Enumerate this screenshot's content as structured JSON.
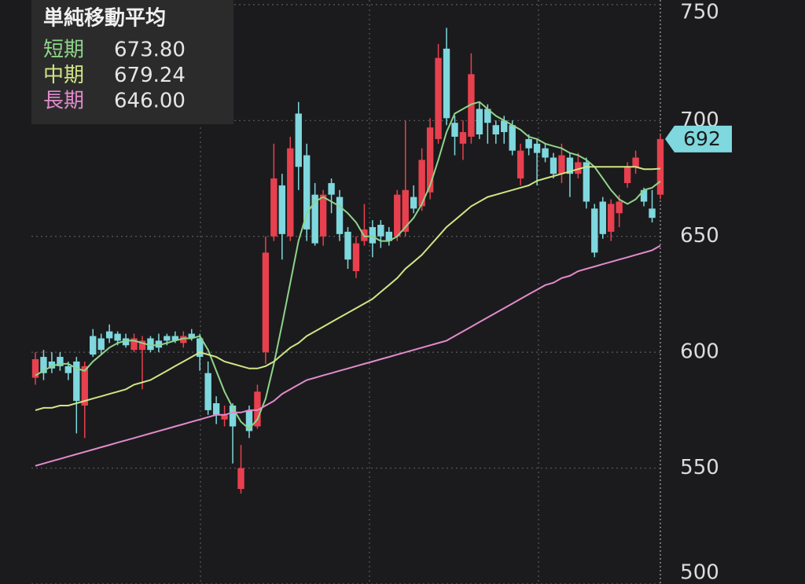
{
  "chart_data": {
    "type": "candlestick",
    "legend_title": "単純移動平均",
    "up_color": "#e8404e",
    "down_color": "#7ed8de",
    "open": [
      589,
      598,
      596,
      598,
      594,
      596,
      577,
      607,
      606,
      609,
      608,
      606,
      601,
      601,
      606,
      605,
      607,
      607,
      604,
      608,
      606,
      591,
      578,
      571,
      577,
      541,
      575,
      568,
      600,
      650,
      672,
      650,
      703,
      685,
      668,
      650,
      673,
      667,
      652,
      635,
      648,
      654,
      655,
      652,
      650,
      652,
      667,
      663,
      669,
      692,
      731,
      699,
      690,
      693,
      705,
      705,
      698,
      700,
      698,
      675,
      692,
      690,
      688,
      684,
      677,
      684,
      677,
      682,
      662,
      665,
      652,
      660,
      673,
      680,
      670,
      662,
      668
    ],
    "high": [
      600,
      601,
      600,
      600,
      596,
      598,
      596,
      610,
      608,
      612,
      609,
      608,
      608,
      607,
      607,
      608,
      608,
      609,
      609,
      610,
      608,
      596,
      581,
      577,
      578,
      560,
      577,
      586,
      650,
      690,
      677,
      693,
      708,
      690,
      673,
      670,
      675,
      670,
      654,
      650,
      664,
      657,
      657,
      654,
      670,
      700,
      672,
      688,
      701,
      733,
      740,
      702,
      700,
      729,
      708,
      707,
      700,
      702,
      700,
      690,
      694,
      692,
      690,
      686,
      690,
      686,
      686,
      684,
      664,
      667,
      666,
      668,
      682,
      687,
      671,
      670,
      694
    ],
    "low": [
      586,
      588,
      591,
      592,
      588,
      565,
      563,
      598,
      599,
      604,
      603,
      602,
      600,
      584,
      600,
      600,
      603,
      604,
      602,
      605,
      592,
      573,
      569,
      568,
      552,
      539,
      563,
      567,
      595,
      648,
      640,
      648,
      670,
      648,
      646,
      646,
      660,
      648,
      636,
      632,
      646,
      641,
      645,
      646,
      648,
      650,
      660,
      661,
      666,
      690,
      698,
      685,
      683,
      690,
      692,
      690,
      690,
      690,
      685,
      672,
      685,
      672,
      682,
      675,
      673,
      667,
      675,
      662,
      641,
      649,
      648,
      654,
      671,
      677,
      663,
      656,
      666
    ],
    "close": [
      597,
      591,
      593,
      594,
      591,
      579,
      594,
      599,
      601,
      606,
      605,
      603,
      606,
      605,
      601,
      602,
      605,
      605,
      607,
      606,
      598,
      575,
      573,
      573,
      568,
      550,
      566,
      583,
      643,
      675,
      651,
      688,
      680,
      653,
      647,
      668,
      668,
      651,
      640,
      647,
      653,
      647,
      650,
      648,
      668,
      670,
      662,
      683,
      697,
      727,
      701,
      693,
      695,
      720,
      694,
      699,
      694,
      695,
      687,
      687,
      688,
      686,
      684,
      677,
      685,
      677,
      682,
      665,
      643,
      651,
      664,
      665,
      680,
      684,
      665,
      658,
      692
    ],
    "series": [
      {
        "name": "短期",
        "color": "#8fd48a",
        "last": {
          "value": 673.8,
          "label": "673.80"
        },
        "values": [
          590,
          592,
          594,
          595,
          595,
          593,
          592,
          596,
          599,
          602,
          604,
          605,
          605,
          604,
          603,
          603,
          604,
          605,
          606,
          606,
          607,
          601,
          592,
          583,
          576,
          570,
          567,
          571,
          580,
          595,
          612,
          630,
          648,
          660,
          665,
          667,
          665,
          663,
          660,
          656,
          650,
          650,
          648,
          648,
          650,
          654,
          658,
          664,
          672,
          683,
          695,
          703,
          705,
          707,
          708,
          705,
          702,
          700,
          698,
          696,
          693,
          692,
          690,
          689,
          688,
          686,
          685,
          683,
          680,
          675,
          670,
          666,
          664,
          666,
          670,
          671,
          673.8
        ]
      },
      {
        "name": "中期",
        "color": "#cfe585",
        "last": {
          "value": 679.24,
          "label": "679.24"
        },
        "values": [
          575,
          576,
          576,
          577,
          577,
          578,
          579,
          580,
          581,
          582,
          583,
          584,
          586,
          587,
          588,
          590,
          592,
          594,
          596,
          598,
          600,
          599,
          598,
          596,
          595,
          594,
          593,
          593,
          594,
          596,
          599,
          602,
          604,
          607,
          609,
          611,
          613,
          615,
          617,
          619,
          621,
          623,
          626,
          629,
          632,
          636,
          639,
          642,
          646,
          650,
          654,
          657,
          660,
          663,
          665,
          667,
          668,
          669,
          670,
          671,
          672,
          674,
          675,
          676,
          677,
          678,
          679,
          680,
          680,
          680,
          680,
          680,
          680,
          680,
          679,
          679,
          679.24
        ]
      },
      {
        "name": "長期",
        "color": "#e28bcb",
        "last": {
          "value": 646,
          "label": "646.00"
        },
        "values": [
          551,
          552,
          553,
          554,
          555,
          556,
          557,
          558,
          559,
          560,
          561,
          562,
          563,
          564,
          565,
          566,
          567,
          568,
          569,
          570,
          571,
          572,
          573,
          573,
          574,
          574,
          575,
          575,
          577,
          579,
          582,
          584,
          586,
          588,
          589,
          590,
          591,
          592,
          593,
          594,
          595,
          596,
          597,
          598,
          599,
          600,
          601,
          602,
          603,
          604,
          605,
          607,
          609,
          611,
          613,
          615,
          617,
          619,
          621,
          623,
          625,
          627,
          629,
          630,
          632,
          633,
          635,
          636,
          637,
          638,
          639,
          640,
          641,
          642,
          643,
          644,
          646
        ]
      }
    ],
    "ylim": [
      500,
      752
    ],
    "yticks": [
      500,
      550,
      600,
      650,
      700,
      750
    ],
    "grid": true
  }
}
